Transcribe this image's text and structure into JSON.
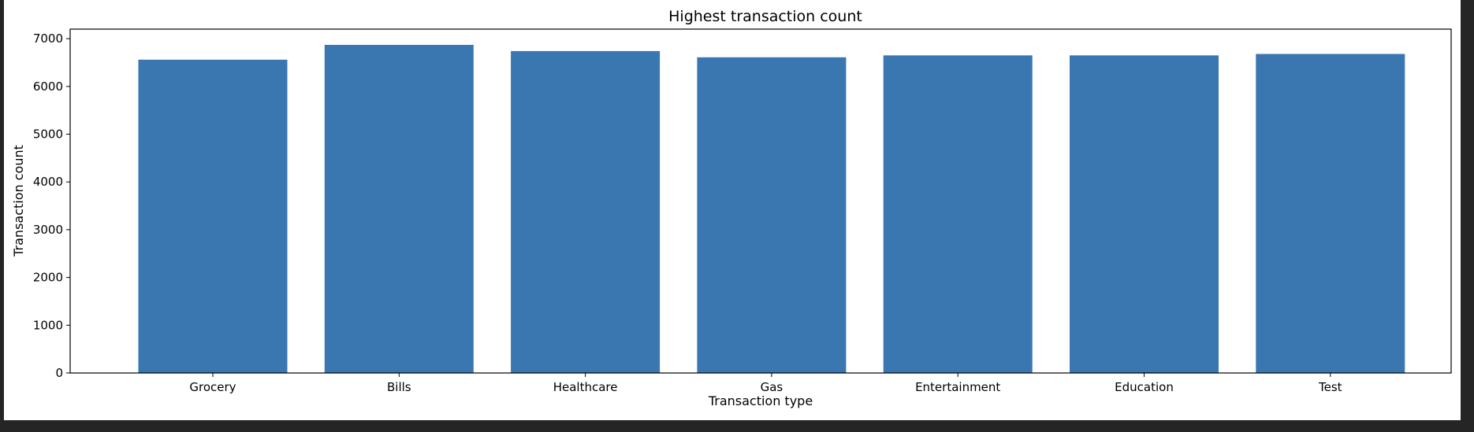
{
  "colors": {
    "bar": "#3a76af",
    "axis": "#000000",
    "figure_bg": "#ffffff",
    "page_bg": "#252525"
  },
  "chart_data": {
    "type": "bar",
    "title": "Highest transaction count",
    "xlabel": "Transaction type",
    "ylabel": "Transaction count",
    "categories": [
      "Grocery",
      "Bills",
      "Healthcare",
      "Gas",
      "Entertainment",
      "Education",
      "Test"
    ],
    "values": [
      6560,
      6870,
      6740,
      6610,
      6650,
      6650,
      6680
    ],
    "ylim": [
      0,
      7200
    ],
    "yticks": [
      0,
      1000,
      2000,
      3000,
      4000,
      5000,
      6000,
      7000
    ],
    "grid": false,
    "legend": "none"
  }
}
